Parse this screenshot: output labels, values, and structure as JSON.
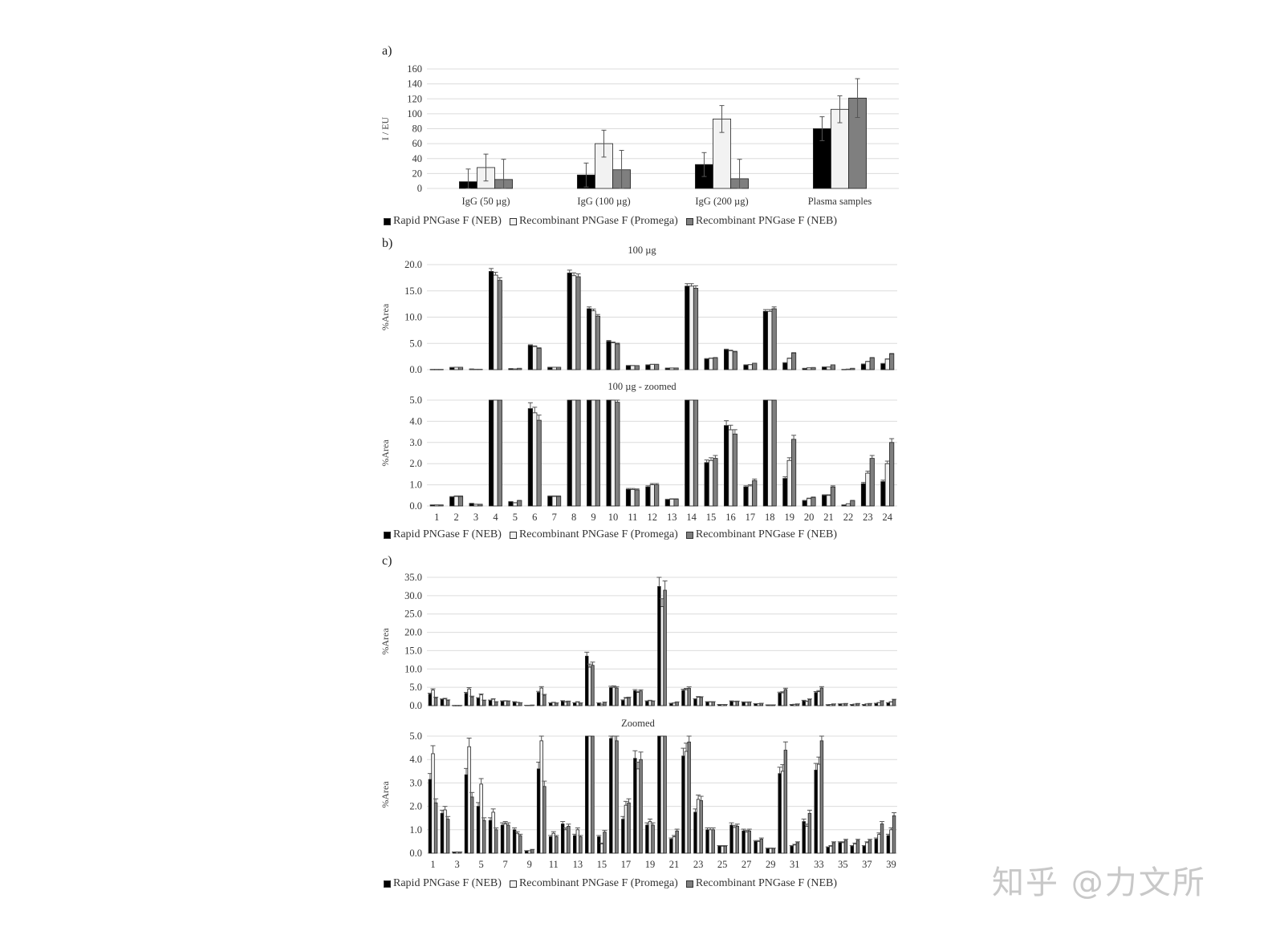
{
  "watermark": "知乎 @力文所",
  "legend": {
    "items": [
      {
        "label": "Rapid PNGase F (NEB)",
        "color": "#000000"
      },
      {
        "label": "Recombinant PNGase F (Promega)",
        "color": "#f2f2f2"
      },
      {
        "label": "Recombinant PNGase F (NEB)",
        "color": "#7f7f7f"
      }
    ]
  },
  "chart_data": [
    {
      "panel": "a)",
      "type": "bar",
      "title": "",
      "ylabel": "I / EU",
      "xlabel": "",
      "ylim": [
        0,
        160
      ],
      "yticks": [
        0,
        20,
        40,
        60,
        80,
        100,
        120,
        140,
        160
      ],
      "grid": true,
      "legend_position": "bottom",
      "categories": [
        "IgG (50 µg)",
        "IgG (100 µg)",
        "IgG (200 µg)",
        "Plasma samples"
      ],
      "series": [
        {
          "name": "Rapid PNGase F (NEB)",
          "values": [
            9,
            18,
            32,
            80
          ],
          "errors": [
            17,
            16,
            16,
            16
          ]
        },
        {
          "name": "Recombinant PNGase F (Promega)",
          "values": [
            28,
            60,
            93,
            106
          ],
          "errors": [
            18,
            18,
            18,
            18
          ]
        },
        {
          "name": "Recombinant PNGase F (NEB)",
          "values": [
            12,
            25,
            13,
            121
          ],
          "errors": [
            27,
            26,
            26,
            26
          ]
        }
      ]
    },
    {
      "panel": "b)",
      "type": "bar",
      "title": "100 µg",
      "ylabel": "%Area",
      "ylim": [
        0,
        20
      ],
      "yticks": [
        "0.0",
        "5.0",
        "10.0",
        "15.0",
        "20.0"
      ],
      "grid": true,
      "categories": [
        "1",
        "2",
        "3",
        "4",
        "5",
        "6",
        "7",
        "8",
        "9",
        "10",
        "11",
        "12",
        "13",
        "14",
        "15",
        "16",
        "17",
        "18",
        "19",
        "20",
        "21",
        "22",
        "23",
        "24"
      ],
      "series": [
        {
          "name": "Rapid PNGase F (NEB)",
          "values": [
            0.05,
            0.42,
            0.12,
            18.7,
            0.2,
            4.6,
            0.45,
            18.4,
            11.6,
            5.4,
            0.78,
            0.9,
            0.3,
            15.9,
            2.05,
            3.8,
            0.9,
            11.1,
            1.3,
            0.25,
            0.5,
            0.05,
            1.05,
            1.15
          ]
        },
        {
          "name": "Recombinant PNGase F (Promega)",
          "values": [
            0.05,
            0.45,
            0.08,
            18.0,
            0.15,
            4.4,
            0.45,
            17.9,
            11.2,
            5.1,
            0.78,
            1.0,
            0.32,
            15.9,
            2.15,
            3.6,
            0.95,
            11.1,
            2.15,
            0.35,
            0.5,
            0.1,
            1.55,
            2.0
          ]
        },
        {
          "name": "Recombinant PNGase F (NEB)",
          "values": [
            0.05,
            0.45,
            0.08,
            17.0,
            0.25,
            4.05,
            0.45,
            17.7,
            10.2,
            4.9,
            0.76,
            1.0,
            0.32,
            15.5,
            2.25,
            3.4,
            1.2,
            11.6,
            3.15,
            0.4,
            0.9,
            0.25,
            2.25,
            3.0
          ]
        }
      ]
    },
    {
      "panel": "",
      "type": "bar",
      "title": "100 µg  - zoomed",
      "ylabel": "%Area",
      "ylim": [
        0,
        5
      ],
      "yticks": [
        "0.0",
        "1.0",
        "2.0",
        "3.0",
        "4.0",
        "5.0"
      ],
      "grid": true,
      "clip": true,
      "source": "same data as panel b, clipped at 5.0",
      "categories": [
        "1",
        "2",
        "3",
        "4",
        "5",
        "6",
        "7",
        "8",
        "9",
        "10",
        "11",
        "12",
        "13",
        "14",
        "15",
        "16",
        "17",
        "18",
        "19",
        "20",
        "21",
        "22",
        "23",
        "24"
      ]
    },
    {
      "panel": "c)",
      "type": "bar",
      "title": "",
      "ylabel": "%Area",
      "ylim": [
        0,
        35
      ],
      "yticks": [
        "0.0",
        "5.0",
        "10.0",
        "15.0",
        "20.0",
        "25.0",
        "30.0",
        "35.0"
      ],
      "grid": true,
      "categories": [
        "1",
        "2",
        "3",
        "4",
        "5",
        "6",
        "7",
        "8",
        "9",
        "10",
        "11",
        "12",
        "13",
        "14",
        "15",
        "16",
        "17",
        "18",
        "19",
        "20",
        "21",
        "22",
        "23",
        "24",
        "25",
        "26",
        "27",
        "28",
        "29",
        "30",
        "31",
        "32",
        "33",
        "34",
        "35",
        "36",
        "37",
        "38",
        "39"
      ],
      "xtick_labels_shown": [
        "1",
        "3",
        "5",
        "7",
        "9",
        "11",
        "13",
        "15",
        "17",
        "19",
        "21",
        "23",
        "25",
        "27",
        "29",
        "31",
        "33",
        "35",
        "37",
        "39"
      ],
      "series": [
        {
          "name": "Rapid PNGase F (NEB)",
          "values": [
            3.15,
            1.7,
            0.05,
            3.35,
            2.0,
            1.4,
            1.2,
            1.0,
            0.1,
            3.6,
            0.7,
            1.25,
            0.75,
            13.5,
            0.7,
            4.9,
            1.45,
            4.05,
            1.2,
            32.5,
            0.6,
            4.15,
            1.75,
            1.0,
            0.3,
            1.2,
            0.95,
            0.5,
            0.2,
            3.4,
            0.3,
            1.35,
            3.55,
            0.25,
            0.45,
            0.3,
            0.3,
            0.6,
            0.75
          ]
        },
        {
          "name": "Recombinant PNGase F (Promega)",
          "values": [
            4.25,
            1.85,
            0.05,
            4.55,
            2.95,
            1.75,
            1.25,
            0.85,
            0.1,
            4.8,
            0.85,
            1.0,
            1.0,
            10.5,
            0.4,
            5.0,
            2.05,
            3.6,
            1.35,
            27.0,
            0.7,
            4.35,
            2.3,
            1.0,
            0.3,
            1.1,
            0.9,
            0.5,
            0.2,
            3.5,
            0.35,
            1.15,
            3.8,
            0.3,
            0.45,
            0.4,
            0.45,
            0.8,
            1.0
          ]
        },
        {
          "name": "Recombinant PNGase F (NEB)",
          "values": [
            2.15,
            1.45,
            0.05,
            2.4,
            1.4,
            1.0,
            1.2,
            0.75,
            0.15,
            2.85,
            0.7,
            1.15,
            0.7,
            11.0,
            0.9,
            4.8,
            2.15,
            4.0,
            1.2,
            31.5,
            0.95,
            4.75,
            2.25,
            1.0,
            0.3,
            1.15,
            0.95,
            0.6,
            0.2,
            4.4,
            0.45,
            1.7,
            4.8,
            0.45,
            0.55,
            0.55,
            0.55,
            1.25,
            1.6
          ]
        }
      ]
    },
    {
      "panel": "",
      "type": "bar",
      "title": "Zoomed",
      "ylabel": "%Area",
      "ylim": [
        0,
        5
      ],
      "yticks": [
        "0.0",
        "1.0",
        "2.0",
        "3.0",
        "4.0",
        "5.0"
      ],
      "grid": true,
      "clip": true,
      "source": "same data as panel c, clipped at 5.0",
      "xtick_labels_shown": [
        "1",
        "3",
        "5",
        "7",
        "9",
        "11",
        "13",
        "15",
        "17",
        "19",
        "21",
        "23",
        "25",
        "27",
        "29",
        "31",
        "33",
        "35",
        "37",
        "39"
      ]
    }
  ]
}
